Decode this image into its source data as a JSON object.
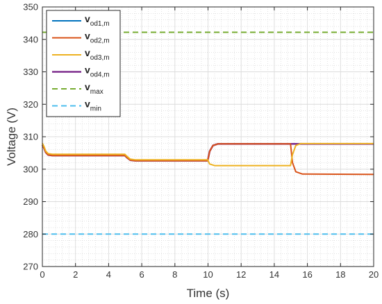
{
  "chart_data": {
    "type": "line",
    "title": "",
    "xlabel": "Time (s)",
    "ylabel": "Voltage (V)",
    "xlim": [
      0,
      20
    ],
    "ylim": [
      270,
      350
    ],
    "xticks": [
      0,
      2,
      4,
      6,
      8,
      10,
      12,
      14,
      16,
      18,
      20
    ],
    "yticks": [
      270,
      280,
      290,
      300,
      310,
      320,
      330,
      340,
      350
    ],
    "x_tick_labels": [
      "0",
      "2",
      "4",
      "6",
      "8",
      "10",
      "12",
      "14",
      "16",
      "18",
      "20"
    ],
    "y_tick_labels": [
      "270",
      "280",
      "290",
      "300",
      "310",
      "320",
      "330",
      "340",
      "350"
    ],
    "grid": true,
    "minor_grid": true,
    "legend_position": "top-left",
    "series": [
      {
        "name_main": "v",
        "name_sub": "od1,m",
        "color": "#0072BD",
        "style": "solid",
        "points": [
          [
            0,
            307.5
          ],
          [
            0.1,
            306.5
          ],
          [
            0.2,
            305.2
          ],
          [
            0.35,
            304.4
          ],
          [
            0.6,
            304.2
          ],
          [
            4.98,
            304.2
          ],
          [
            5.1,
            303.6
          ],
          [
            5.3,
            302.8
          ],
          [
            5.6,
            302.6
          ],
          [
            9.98,
            302.6
          ],
          [
            10.1,
            305.5
          ],
          [
            10.3,
            307.3
          ],
          [
            10.6,
            307.8
          ],
          [
            20,
            307.8
          ]
        ]
      },
      {
        "name_main": "v",
        "name_sub": "od2,m",
        "color": "#D95319",
        "style": "solid",
        "points": [
          [
            0,
            307.5
          ],
          [
            0.1,
            306.5
          ],
          [
            0.2,
            305.2
          ],
          [
            0.35,
            304.4
          ],
          [
            0.6,
            304.2
          ],
          [
            4.98,
            304.2
          ],
          [
            5.1,
            303.6
          ],
          [
            5.3,
            302.8
          ],
          [
            5.6,
            302.6
          ],
          [
            9.98,
            302.6
          ],
          [
            10.1,
            305.5
          ],
          [
            10.3,
            307.3
          ],
          [
            10.6,
            307.8
          ],
          [
            14.98,
            307.8
          ],
          [
            15.1,
            302.0
          ],
          [
            15.3,
            299.2
          ],
          [
            15.7,
            298.5
          ],
          [
            20,
            298.4
          ]
        ]
      },
      {
        "name_main": "v",
        "name_sub": "od3,m",
        "color": "#EDB120",
        "style": "solid",
        "points": [
          [
            0,
            308.0
          ],
          [
            0.1,
            307.0
          ],
          [
            0.2,
            305.6
          ],
          [
            0.35,
            304.8
          ],
          [
            0.6,
            304.6
          ],
          [
            4.98,
            304.6
          ],
          [
            5.1,
            304.0
          ],
          [
            5.3,
            303.1
          ],
          [
            5.6,
            302.9
          ],
          [
            9.98,
            302.9
          ],
          [
            10.1,
            301.6
          ],
          [
            10.4,
            301.1
          ],
          [
            14.98,
            301.1
          ],
          [
            15.1,
            304.5
          ],
          [
            15.3,
            307.3
          ],
          [
            15.6,
            307.9
          ],
          [
            20,
            307.9
          ]
        ]
      },
      {
        "name_main": "v",
        "name_sub": "od4,m",
        "color": "#7E2F8E",
        "style": "solid",
        "points": [
          [
            0,
            307.5
          ],
          [
            0.1,
            306.5
          ],
          [
            0.2,
            305.2
          ],
          [
            0.35,
            304.4
          ],
          [
            0.6,
            304.2
          ],
          [
            4.98,
            304.2
          ],
          [
            5.1,
            303.6
          ],
          [
            5.3,
            302.8
          ],
          [
            5.6,
            302.6
          ],
          [
            9.98,
            302.6
          ],
          [
            10.1,
            305.5
          ],
          [
            10.3,
            307.3
          ],
          [
            10.6,
            307.8
          ],
          [
            20,
            307.8
          ]
        ]
      },
      {
        "name_main": "v",
        "name_sub": "max",
        "color": "#77AC30",
        "style": "dashed",
        "points": [
          [
            0,
            342.2
          ],
          [
            20,
            342.2
          ]
        ]
      },
      {
        "name_main": "v",
        "name_sub": "min",
        "color": "#4DBEEE",
        "style": "dashed",
        "points": [
          [
            0,
            280
          ],
          [
            20,
            280
          ]
        ]
      }
    ]
  }
}
